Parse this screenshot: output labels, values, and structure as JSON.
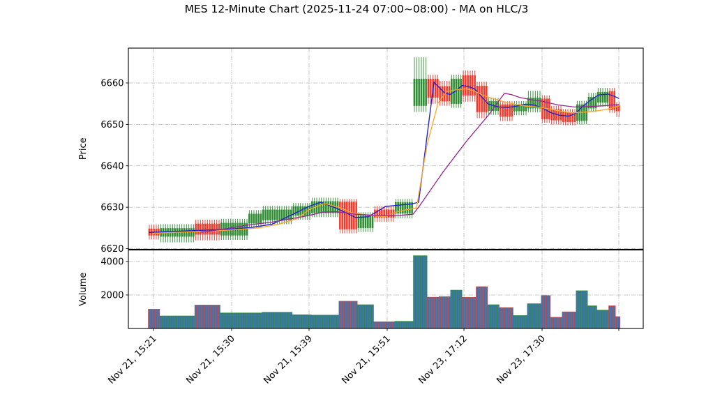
{
  "title": "MES 12-Minute Chart (2025-11-24 07:00~08:00) - MA on HLC/3",
  "chart_data": {
    "type": "candlestick",
    "title": "MES 12-Minute Chart (2025-11-24 07:00~08:00) - MA on HLC/3",
    "grid": true,
    "colors": {
      "up": "#2d8c32",
      "down": "#ee3a2c",
      "volume_fill": "#3d76ae",
      "ma_fast": "#2222cc",
      "ma_medium": "#ffa526",
      "ma_slow": "#94278f",
      "grid_line": "#b9b9b9",
      "axis": "#000000",
      "background": "#ffffff"
    },
    "price_panel": {
      "ylabel": "Price",
      "yticks": [
        6620,
        6630,
        6640,
        6650,
        6660
      ],
      "ylim": [
        6619.6,
        6668.4
      ]
    },
    "volume_panel": {
      "ylabel": "Volume",
      "yticks": [
        2000,
        4000
      ],
      "ylim": [
        0,
        4690
      ]
    },
    "x_ticks": [
      {
        "i": 1.8,
        "label": "Nov 21, 15:21"
      },
      {
        "i": 35.4,
        "label": "Nov 21, 15:30"
      },
      {
        "i": 68.7,
        "label": "Nov 21, 15:39"
      },
      {
        "i": 102.3,
        "label": "Nov 21, 15:51"
      },
      {
        "i": 135.3,
        "label": "Nov 23, 17:12"
      },
      {
        "i": 168.9,
        "label": "Nov 23, 17:30"
      },
      {
        "i": 201.9,
        "label": ""
      }
    ],
    "n_candles": 203,
    "candle_runs_format": [
      "count",
      "direction(g=up,r=down)",
      "body_low",
      "body_high",
      "wick_low",
      "wick_high",
      "volume_per_candle"
    ],
    "candle_runs": [
      [
        5,
        "r",
        6623.2,
        6624.8,
        6622.2,
        6625.8,
        1150
      ],
      [
        15,
        "g",
        6622.9,
        6624.9,
        6621.5,
        6625.9,
        750
      ],
      [
        11,
        "r",
        6623.4,
        6626.0,
        6622.0,
        6627.0,
        1400
      ],
      [
        12,
        "g",
        6623.2,
        6626.2,
        6622.1,
        6627.2,
        930
      ],
      [
        6,
        "g",
        6626.1,
        6628.4,
        6625.1,
        6629.3,
        930
      ],
      [
        13,
        "g",
        6626.9,
        6629.4,
        6625.9,
        6630.3,
        970
      ],
      [
        8,
        "g",
        6628.0,
        6630.2,
        6627.0,
        6631.0,
        820
      ],
      [
        12,
        "g",
        6628.6,
        6631.4,
        6627.6,
        6632.3,
        800
      ],
      [
        8,
        "r",
        6624.7,
        6631.3,
        6623.7,
        6632.0,
        1630
      ],
      [
        7,
        "g",
        6625.0,
        6628.0,
        6624.0,
        6628.8,
        1420
      ],
      [
        9,
        "r",
        6627.5,
        6629.4,
        6626.5,
        6630.3,
        400
      ],
      [
        8,
        "g",
        6628.5,
        6631.2,
        6627.3,
        6632.0,
        430
      ],
      [
        6,
        "g",
        6654.5,
        6661.0,
        6653.0,
        6666.2,
        4350
      ],
      [
        5,
        "r",
        6656.5,
        6661.0,
        6655.0,
        6662.0,
        1870
      ],
      [
        5,
        "r",
        6655.6,
        6659.2,
        6654.5,
        6660.5,
        1900
      ],
      [
        5,
        "g",
        6655.0,
        6661.0,
        6654.0,
        6662.0,
        2290
      ],
      [
        6,
        "r",
        6657.0,
        6661.8,
        6655.5,
        6663.0,
        1860
      ],
      [
        5,
        "r",
        6653.0,
        6659.3,
        6651.5,
        6660.3,
        2500
      ],
      [
        5,
        "g",
        6653.3,
        6655.6,
        6652.3,
        6656.4,
        1420
      ],
      [
        6,
        "r",
        6651.9,
        6654.8,
        6650.8,
        6655.6,
        1250
      ],
      [
        6,
        "g",
        6653.2,
        6654.8,
        6652.2,
        6655.6,
        775
      ],
      [
        6,
        "g",
        6653.9,
        6656.4,
        6652.9,
        6658.1,
        1480
      ],
      [
        4,
        "r",
        6651.3,
        6656.2,
        6650.4,
        6657.0,
        1970
      ],
      [
        5,
        "r",
        6651.0,
        6653.6,
        6650.0,
        6654.5,
        670
      ],
      [
        6,
        "r",
        6650.6,
        6652.9,
        6649.8,
        6653.7,
        995
      ],
      [
        5,
        "g",
        6650.9,
        6654.8,
        6650.0,
        6655.7,
        2255
      ],
      [
        4,
        "g",
        6653.9,
        6656.6,
        6653.0,
        6657.6,
        1355
      ],
      [
        5,
        "g",
        6655.3,
        6657.8,
        6654.3,
        6658.8,
        1100
      ],
      [
        3,
        "r",
        6653.5,
        6658.0,
        6652.8,
        6658.8,
        1355
      ],
      [
        2,
        "r",
        6653.2,
        6654.6,
        6651.8,
        6655.4,
        710
      ]
    ],
    "ma_lines": [
      {
        "name": "MA fast (HLC/3)",
        "color_key": "ma_fast",
        "width": 1.4,
        "points": [
          [
            0,
            6623.9
          ],
          [
            7.8,
            6624.1
          ],
          [
            16.8,
            6624.3
          ],
          [
            25.8,
            6624.5
          ],
          [
            34.8,
            6624.7
          ],
          [
            43.8,
            6625.1
          ],
          [
            52.8,
            6625.9
          ],
          [
            61.8,
            6628.3
          ],
          [
            68.7,
            6630.2
          ],
          [
            73.8,
            6631.2
          ],
          [
            80.7,
            6629.7
          ],
          [
            88.8,
            6627.5
          ],
          [
            94.2,
            6627.7
          ],
          [
            101.7,
            6630.2
          ],
          [
            112.8,
            6630.8
          ],
          [
            115.8,
            6631.2
          ],
          [
            122.4,
            6660.2
          ],
          [
            126.9,
            6657.6
          ],
          [
            129.3,
            6657.2
          ],
          [
            132.3,
            6658.3
          ],
          [
            134.4,
            6659.4
          ],
          [
            136.8,
            6659.2
          ],
          [
            139.8,
            6658.6
          ],
          [
            142.8,
            6656.7
          ],
          [
            145.8,
            6654.9
          ],
          [
            150.3,
            6654.2
          ],
          [
            154.2,
            6654.1
          ],
          [
            157.8,
            6654.4
          ],
          [
            161.7,
            6654.9
          ],
          [
            165.3,
            6654.7
          ],
          [
            168.9,
            6654.0
          ],
          [
            172.8,
            6652.8
          ],
          [
            176.4,
            6652.2
          ],
          [
            180.3,
            6652.0
          ],
          [
            183.3,
            6652.6
          ],
          [
            186.3,
            6654.3
          ],
          [
            189.9,
            6655.9
          ],
          [
            193.2,
            6657.1
          ],
          [
            197.4,
            6657.3
          ],
          [
            199.8,
            6656.8
          ],
          [
            201.9,
            6656.3
          ]
        ]
      },
      {
        "name": "MA medium (HLC/3)",
        "color_key": "ma_medium",
        "width": 1.3,
        "points": [
          [
            1.8,
            6623.7
          ],
          [
            10.8,
            6623.9
          ],
          [
            19.8,
            6624.1
          ],
          [
            28.8,
            6624.3
          ],
          [
            37.8,
            6624.6
          ],
          [
            46.8,
            6625.0
          ],
          [
            55.8,
            6625.9
          ],
          [
            63.3,
            6627.2
          ],
          [
            68.7,
            6629.4
          ],
          [
            75.3,
            6630.9
          ],
          [
            81.3,
            6630.0
          ],
          [
            87.3,
            6628.6
          ],
          [
            95.4,
            6628.0
          ],
          [
            101.4,
            6627.7
          ],
          [
            105.9,
            6628.8
          ],
          [
            109.8,
            6629.3
          ],
          [
            114.9,
            6629.8
          ],
          [
            119.4,
            6645.0
          ],
          [
            124.2,
            6655.2
          ],
          [
            127.8,
            6657.9
          ],
          [
            131.4,
            6658.3
          ],
          [
            136.2,
            6658.6
          ],
          [
            139.8,
            6658.1
          ],
          [
            143.4,
            6657.0
          ],
          [
            146.4,
            6656.5
          ],
          [
            150.3,
            6655.8
          ],
          [
            154.2,
            6655.2
          ],
          [
            157.8,
            6654.8
          ],
          [
            162.3,
            6654.4
          ],
          [
            166.8,
            6654.2
          ],
          [
            171.3,
            6653.8
          ],
          [
            175.8,
            6653.3
          ],
          [
            180.3,
            6652.9
          ],
          [
            182.7,
            6652.8
          ],
          [
            187.8,
            6653.0
          ],
          [
            192.9,
            6653.3
          ],
          [
            197.4,
            6653.7
          ],
          [
            200.4,
            6654.2
          ],
          [
            201.9,
            6654.5
          ]
        ]
      },
      {
        "name": "MA slow (HLC/3)",
        "color_key": "ma_slow",
        "width": 1.3,
        "points": [
          [
            22.2,
            6624.0
          ],
          [
            31.8,
            6624.7
          ],
          [
            41.4,
            6625.6
          ],
          [
            52.8,
            6626.4
          ],
          [
            61.8,
            6627.3
          ],
          [
            68.7,
            6628.0
          ],
          [
            74.4,
            6628.8
          ],
          [
            80.4,
            6628.9
          ],
          [
            88.8,
            6628.3
          ],
          [
            97.8,
            6628.0
          ],
          [
            106.8,
            6628.0
          ],
          [
            113.4,
            6628.3
          ],
          [
            115.8,
            6630.0
          ],
          [
            126.3,
            6638.5
          ],
          [
            136.2,
            6645.8
          ],
          [
            145.8,
            6652.2
          ],
          [
            152.7,
            6657.5
          ],
          [
            155.7,
            6657.2
          ],
          [
            159.3,
            6656.5
          ],
          [
            163.8,
            6656.0
          ],
          [
            168.9,
            6655.6
          ],
          [
            175.8,
            6654.7
          ],
          [
            182.7,
            6654.2
          ],
          [
            189.3,
            6654.3
          ],
          [
            195.3,
            6654.5
          ],
          [
            201.9,
            6654.8
          ]
        ]
      }
    ]
  }
}
